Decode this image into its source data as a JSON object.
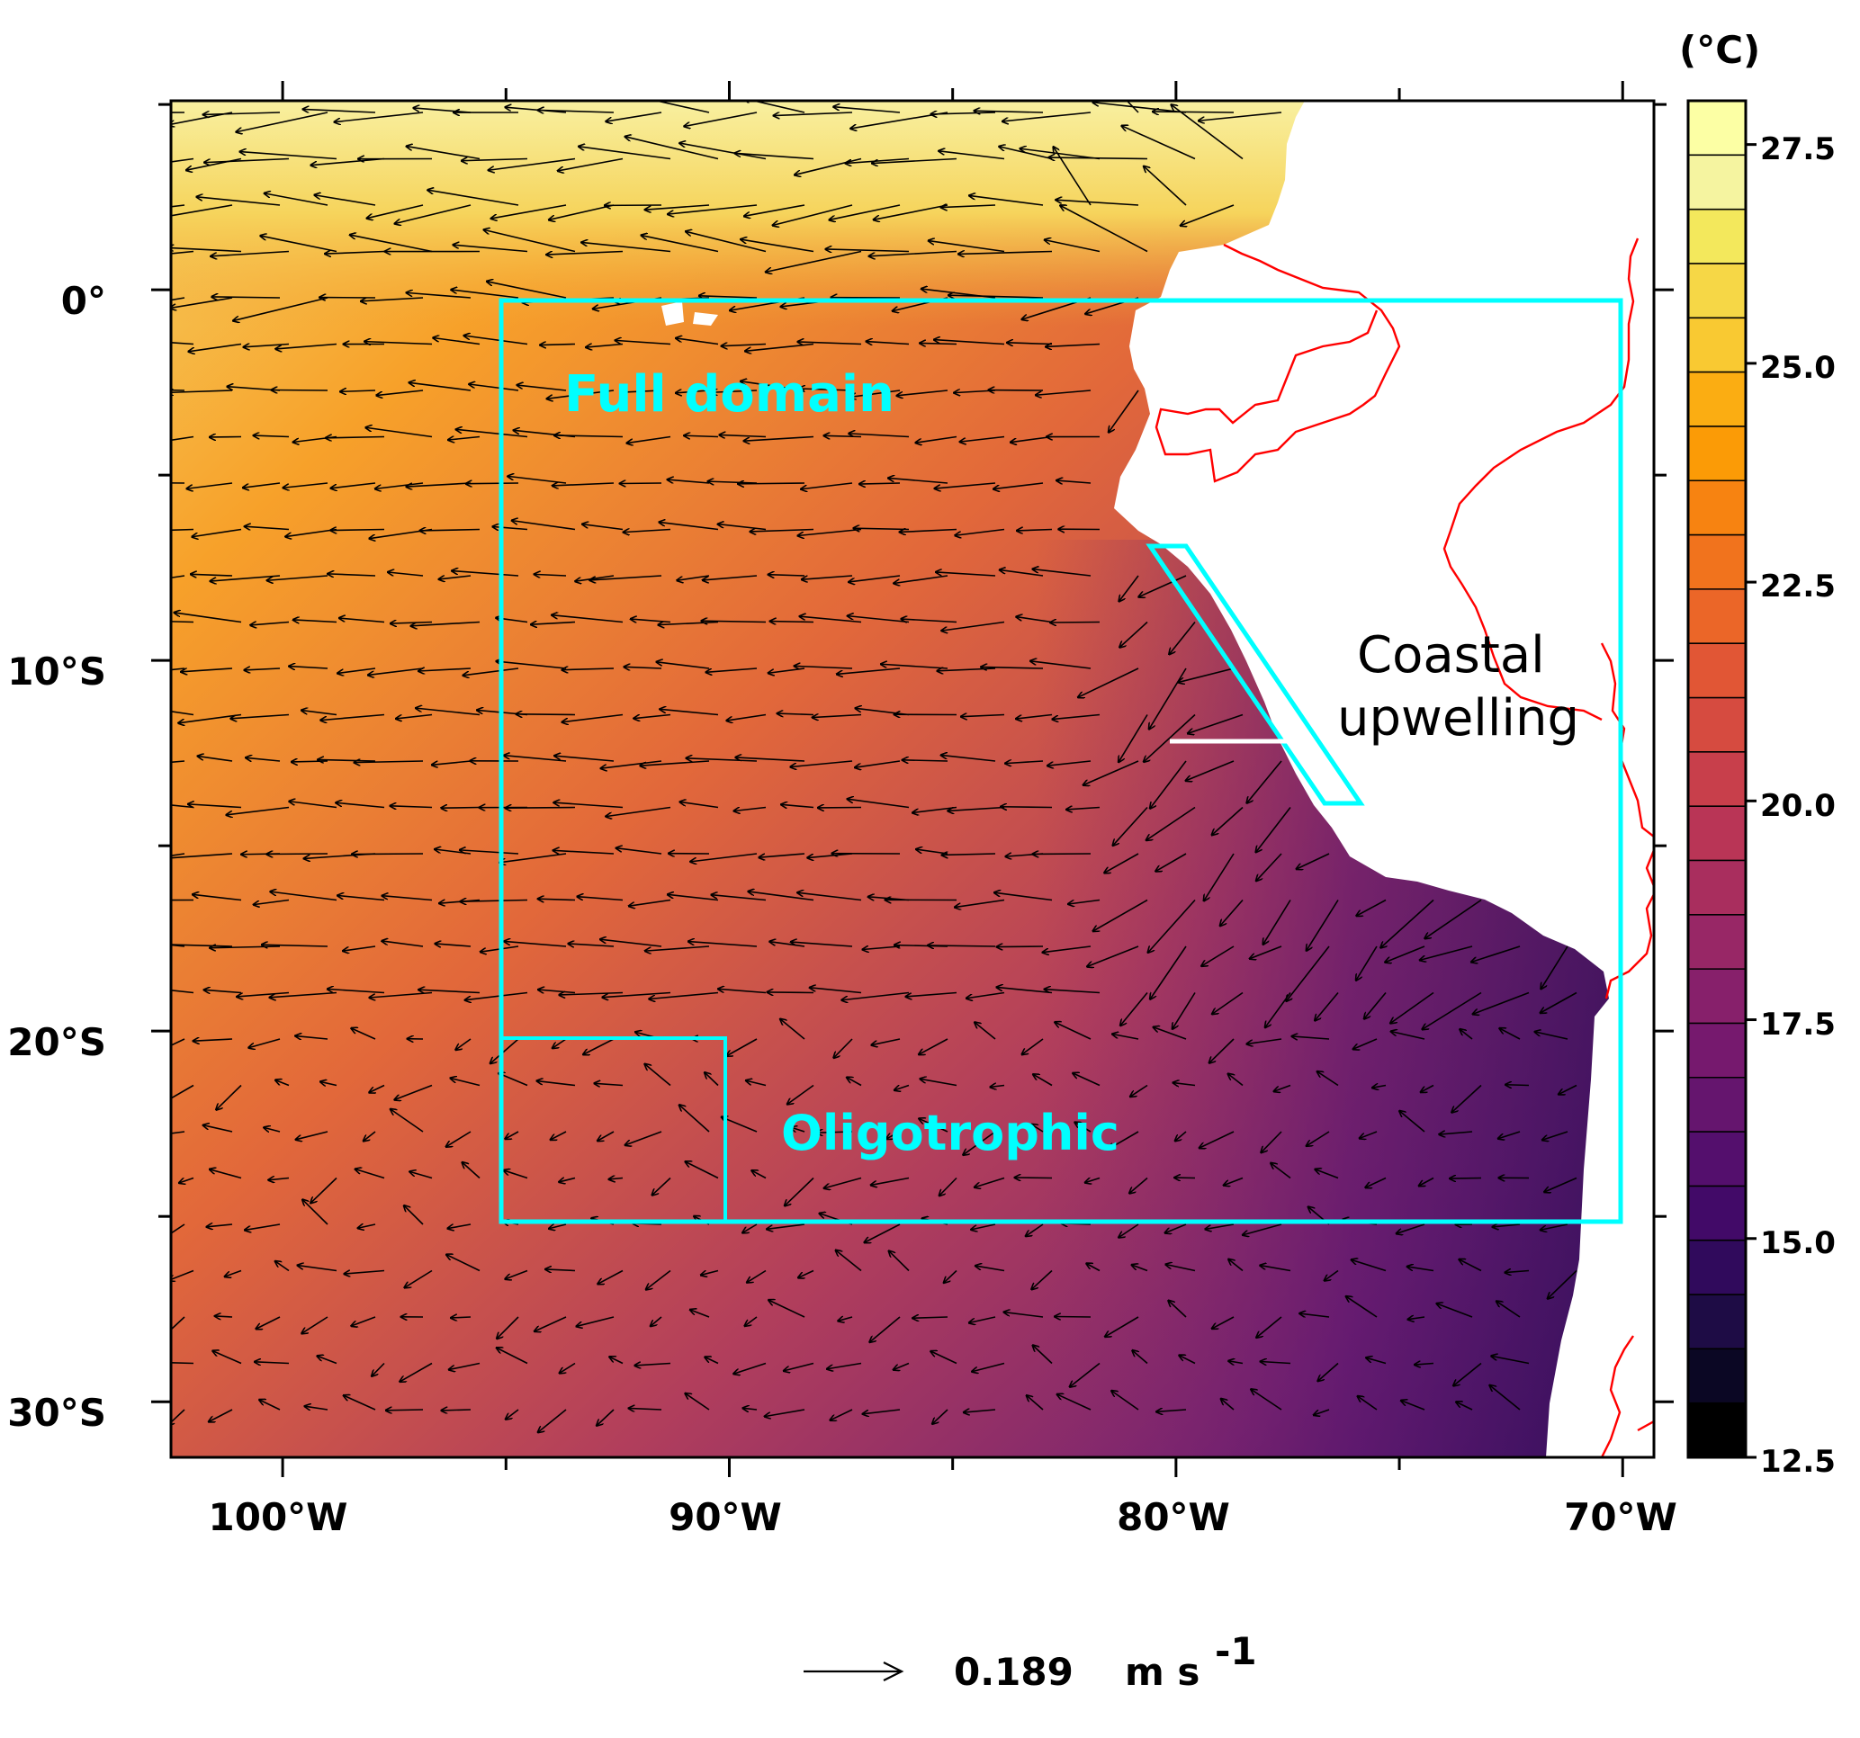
{
  "map": {
    "lon_range": [
      -102.5,
      -69.3
    ],
    "lat_range": [
      -31.5,
      5.1
    ],
    "x_ticks": [
      {
        "lon": -100,
        "label": "100°W"
      },
      {
        "lon": -90,
        "label": "90°W"
      },
      {
        "lon": -80,
        "label": "80°W"
      },
      {
        "lon": -70,
        "label": "70°W"
      }
    ],
    "y_ticks": [
      {
        "lat": 0,
        "label": "0°"
      },
      {
        "lat": -10,
        "label": "10°S"
      },
      {
        "lat": -20,
        "label": "20°S"
      },
      {
        "lat": -30,
        "label": "30°S"
      }
    ],
    "variable": "sea surface temperature",
    "vector_field": "surface current",
    "coastline_color": "#ff0000",
    "region_color": "#00ffff"
  },
  "colorbar": {
    "unit_label": "(°C)",
    "range": [
      12.5,
      28.0
    ],
    "ticks": [
      {
        "value": 27.5,
        "label": "27.5"
      },
      {
        "value": 25.0,
        "label": "25.0"
      },
      {
        "value": 22.5,
        "label": "22.5"
      },
      {
        "value": 20.0,
        "label": "20.0"
      },
      {
        "value": 17.5,
        "label": "17.5"
      },
      {
        "value": 15.0,
        "label": "15.0"
      },
      {
        "value": 12.5,
        "label": "12.5"
      }
    ],
    "colors": [
      "#000000",
      "#0b0724",
      "#1e0c45",
      "#300a5c",
      "#420a68",
      "#540f6d",
      "#65156e",
      "#76196e",
      "#87206b",
      "#982766",
      "#a92e5e",
      "#b93556",
      "#c83f4b",
      "#d64b40",
      "#e15635",
      "#eb6628",
      "#f1731d",
      "#f78311",
      "#fb9b06",
      "#fbad12",
      "#f9c932",
      "#f6d746",
      "#f3e85c",
      "#f5f4a0",
      "#fcffa4"
    ]
  },
  "regions": {
    "full_domain": {
      "label": "Full domain",
      "lon": [
        -95,
        -70
      ],
      "lat": [
        -25,
        0
      ]
    },
    "oligotrophic": {
      "label": "Oligotrophic",
      "lon": [
        -95,
        -90
      ],
      "lat": [
        -25,
        -20
      ]
    },
    "coastal_upwelling": {
      "label_line1": "Coastal",
      "label_line2": "upwelling"
    }
  },
  "reference_vector": {
    "value": "0.189",
    "unit": "m s",
    "exponent": "-1"
  }
}
